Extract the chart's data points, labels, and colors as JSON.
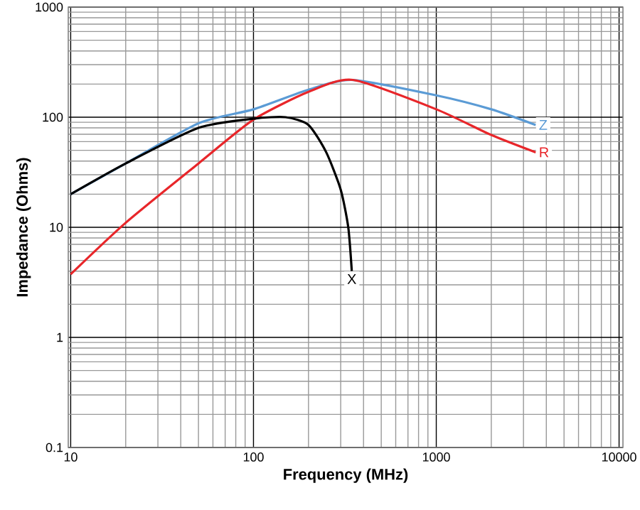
{
  "chart_data": {
    "type": "line",
    "xlabel": "Frequency (MHz)",
    "ylabel": "Impedance (Ohms)",
    "log": "xy",
    "grid": true,
    "xlim": [
      9.7,
      10500
    ],
    "ylim": [
      0.1,
      1000
    ],
    "xticks": [
      10,
      100,
      1000,
      10000
    ],
    "yticks": [
      0.1,
      1,
      10,
      100,
      1000
    ],
    "series": [
      {
        "name": "Z",
        "color": "#5b9bd5",
        "x": [
          10,
          20,
          50,
          100,
          200,
          350,
          1000,
          2000,
          3500
        ],
        "values": [
          20,
          38,
          88,
          118,
          178,
          218,
          158,
          118,
          85
        ]
      },
      {
        "name": "R",
        "color": "#e8262a",
        "x": [
          10,
          20,
          50,
          100,
          200,
          350,
          1000,
          2000,
          3500
        ],
        "values": [
          3.75,
          11,
          38,
          95,
          170,
          218,
          118,
          69,
          48
        ]
      },
      {
        "name": "X",
        "color": "#000000",
        "x": [
          10,
          20,
          50,
          100,
          150,
          200,
          250,
          300,
          330,
          345
        ],
        "values": [
          20,
          38,
          80,
          97,
          100,
          85,
          48,
          22,
          10,
          4
        ]
      }
    ]
  }
}
